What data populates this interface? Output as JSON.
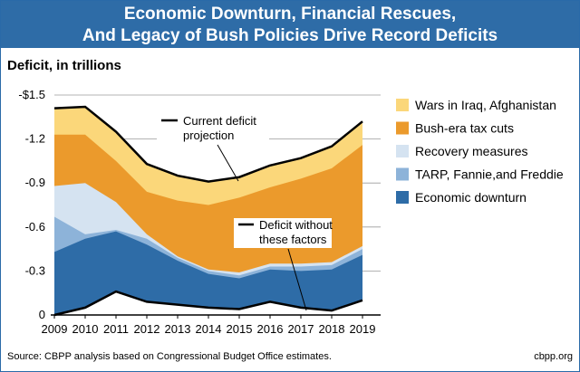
{
  "header": {
    "title_line1": "Economic Downturn, Financial Rescues,",
    "title_line2": "And Legacy of Bush Policies Drive Record Deficits"
  },
  "unit_label": "Deficit, in trillions",
  "source": "Source: CBPP analysis based on Congressional Budget Office estimates.",
  "site": "cbpp.org",
  "colors": {
    "header_bg": "#2e6ca7",
    "wars": "#fbd77a",
    "tax_cuts": "#eb9a2c",
    "recovery": "#d5e3f1",
    "tarp": "#8db3d9",
    "downturn": "#2e6ca7",
    "without": "#ffffff"
  },
  "chart_data": {
    "type": "area",
    "x": [
      2009,
      2010,
      2011,
      2012,
      2013,
      2014,
      2015,
      2016,
      2017,
      2018,
      2019
    ],
    "ylim": [
      0,
      -1.5
    ],
    "yticks": [
      "-$1.5",
      "-1.2",
      "-0.9",
      "-0.6",
      "-0.3",
      "0"
    ],
    "ytick_values": [
      -1.5,
      -1.2,
      -0.9,
      -0.6,
      -0.3,
      0
    ],
    "series": [
      {
        "name": "Economic downturn",
        "key": "downturn",
        "values": [
          -0.43,
          -0.52,
          -0.57,
          -0.48,
          -0.37,
          -0.28,
          -0.25,
          -0.31,
          -0.3,
          -0.31,
          -0.41
        ]
      },
      {
        "name": "TARP, Fannie,and Freddie",
        "key": "tarp",
        "values": [
          -0.67,
          -0.55,
          -0.58,
          -0.52,
          -0.39,
          -0.3,
          -0.27,
          -0.33,
          -0.33,
          -0.34,
          -0.45
        ]
      },
      {
        "name": "Recovery measures",
        "key": "recovery",
        "values": [
          -0.88,
          -0.9,
          -0.77,
          -0.55,
          -0.4,
          -0.31,
          -0.29,
          -0.35,
          -0.35,
          -0.36,
          -0.47
        ]
      },
      {
        "name": "Bush-era tax cuts",
        "key": "tax_cuts",
        "values": [
          -1.23,
          -1.23,
          -1.05,
          -0.84,
          -0.78,
          -0.75,
          -0.8,
          -0.87,
          -0.93,
          -1.0,
          -1.16
        ]
      },
      {
        "name": "Wars in Iraq,  Afghanistan",
        "key": "wars",
        "values": [
          -1.41,
          -1.42,
          -1.25,
          -1.03,
          -0.95,
          -0.91,
          -0.94,
          -1.02,
          -1.07,
          -1.15,
          -1.32
        ]
      }
    ],
    "base_series": {
      "key": "without",
      "values": [
        0,
        -0.05,
        -0.16,
        -0.09,
        -0.07,
        -0.05,
        -0.04,
        -0.09,
        -0.05,
        -0.03,
        -0.1
      ]
    },
    "legend": {
      "placement": "right",
      "order": [
        "wars",
        "tax_cuts",
        "recovery",
        "tarp",
        "downturn"
      ]
    },
    "annotations": [
      {
        "id": "current",
        "line1": "Current deficit",
        "line2": "projection"
      },
      {
        "id": "without",
        "line1": "Deficit without",
        "line2": "these factors"
      }
    ]
  }
}
